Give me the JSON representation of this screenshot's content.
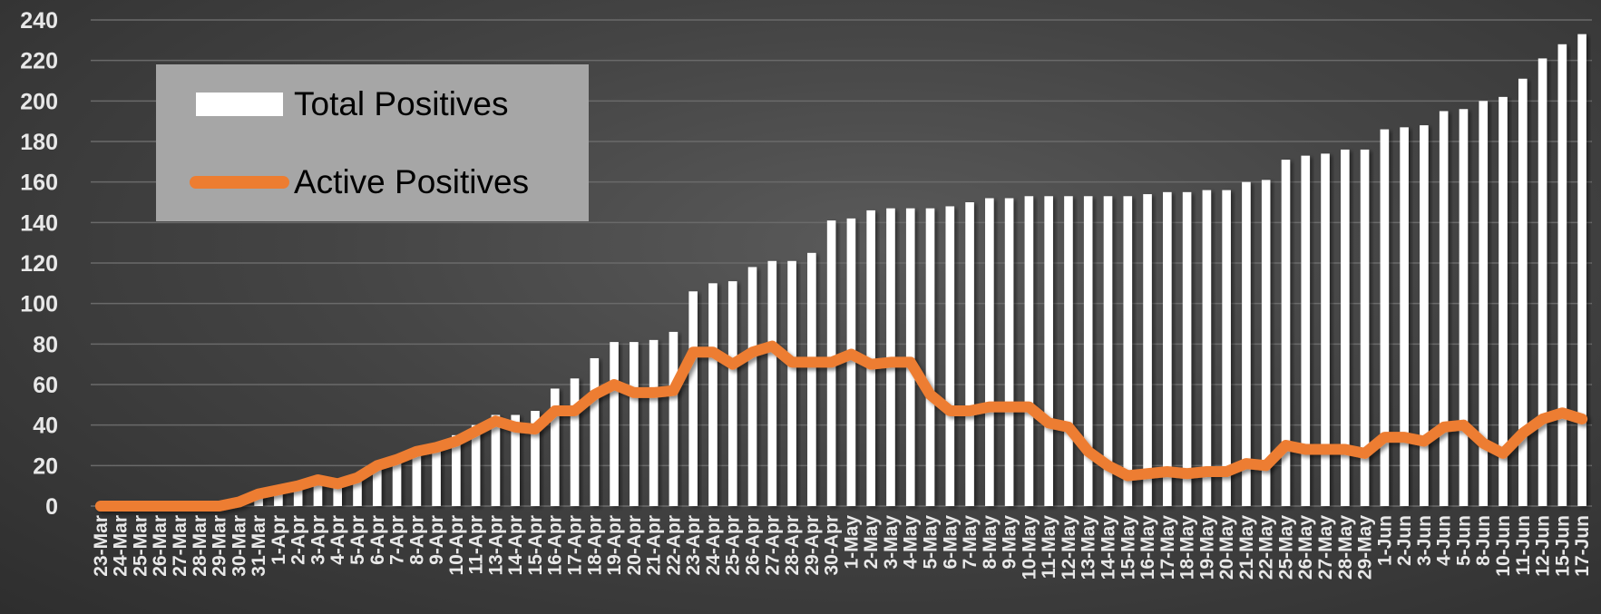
{
  "chart_data": {
    "type": "bar",
    "title": "",
    "xlabel": "",
    "ylabel": "",
    "ylim": [
      0,
      240
    ],
    "y_ticks": [
      0,
      20,
      40,
      60,
      80,
      100,
      120,
      140,
      160,
      180,
      200,
      220,
      240
    ],
    "grid": true,
    "legend_placement": "top-left",
    "categories": [
      "23-Mar",
      "24-Mar",
      "25-Mar",
      "26-Mar",
      "27-Mar",
      "28-Mar",
      "29-Mar",
      "30-Mar",
      "31-Mar",
      "1-Apr",
      "2-Apr",
      "3-Apr",
      "4-Apr",
      "5-Apr",
      "6-Apr",
      "7-Apr",
      "8-Apr",
      "9-Apr",
      "10-Apr",
      "11-Apr",
      "13-Apr",
      "14-Apr",
      "15-Apr",
      "16-Apr",
      "17-Apr",
      "18-Apr",
      "19-Apr",
      "20-Apr",
      "21-Apr",
      "22-Apr",
      "23-Apr",
      "24-Apr",
      "25-Apr",
      "26-Apr",
      "27-Apr",
      "28-Apr",
      "29-Apr",
      "30-Apr",
      "1-May",
      "2-May",
      "3-May",
      "4-May",
      "5-May",
      "6-May",
      "7-May",
      "8-May",
      "9-May",
      "10-May",
      "11-May",
      "12-May",
      "13-May",
      "14-May",
      "15-May",
      "16-May",
      "17-May",
      "18-May",
      "19-May",
      "20-May",
      "21-May",
      "22-May",
      "25-May",
      "26-May",
      "27-May",
      "28-May",
      "29-May",
      "1-Jun",
      "2-Jun",
      "3-Jun",
      "4-Jun",
      "5-Jun",
      "8-Jun",
      "10-Jun",
      "11-Jun",
      "12-Jun",
      "15-Jun",
      "17-Jun"
    ],
    "series": [
      {
        "name": "Total Positives",
        "type": "bar",
        "color": "#ffffff",
        "values": [
          0,
          0,
          0,
          0,
          0,
          0,
          0,
          2,
          6,
          8,
          10,
          12,
          12,
          14,
          20,
          24,
          28,
          30,
          35,
          40,
          45,
          45,
          47,
          58,
          63,
          73,
          81,
          81,
          82,
          86,
          106,
          110,
          111,
          118,
          121,
          121,
          125,
          141,
          142,
          146,
          147,
          147,
          147,
          148,
          150,
          152,
          152,
          153,
          153,
          153,
          153,
          153,
          153,
          154,
          155,
          155,
          156,
          156,
          160,
          161,
          171,
          173,
          174,
          176,
          176,
          186,
          187,
          188,
          195,
          196,
          200,
          202,
          211,
          221,
          228,
          233
        ]
      },
      {
        "name": "Active Positives",
        "type": "line",
        "color": "#ed7d31",
        "values": [
          0,
          0,
          0,
          0,
          0,
          0,
          0,
          2,
          6,
          8,
          10,
          13,
          11,
          14,
          20,
          23,
          27,
          29,
          32,
          37,
          42,
          39,
          38,
          47,
          47,
          55,
          60,
          56,
          56,
          57,
          76,
          76,
          70,
          76,
          79,
          71,
          71,
          71,
          75,
          70,
          71,
          71,
          55,
          47,
          47,
          49,
          49,
          49,
          41,
          39,
          27,
          20,
          15,
          16,
          17,
          16,
          17,
          17,
          21,
          20,
          30,
          28,
          28,
          28,
          26,
          34,
          34,
          32,
          39,
          40,
          31,
          26,
          36,
          43,
          46,
          43
        ]
      }
    ]
  }
}
